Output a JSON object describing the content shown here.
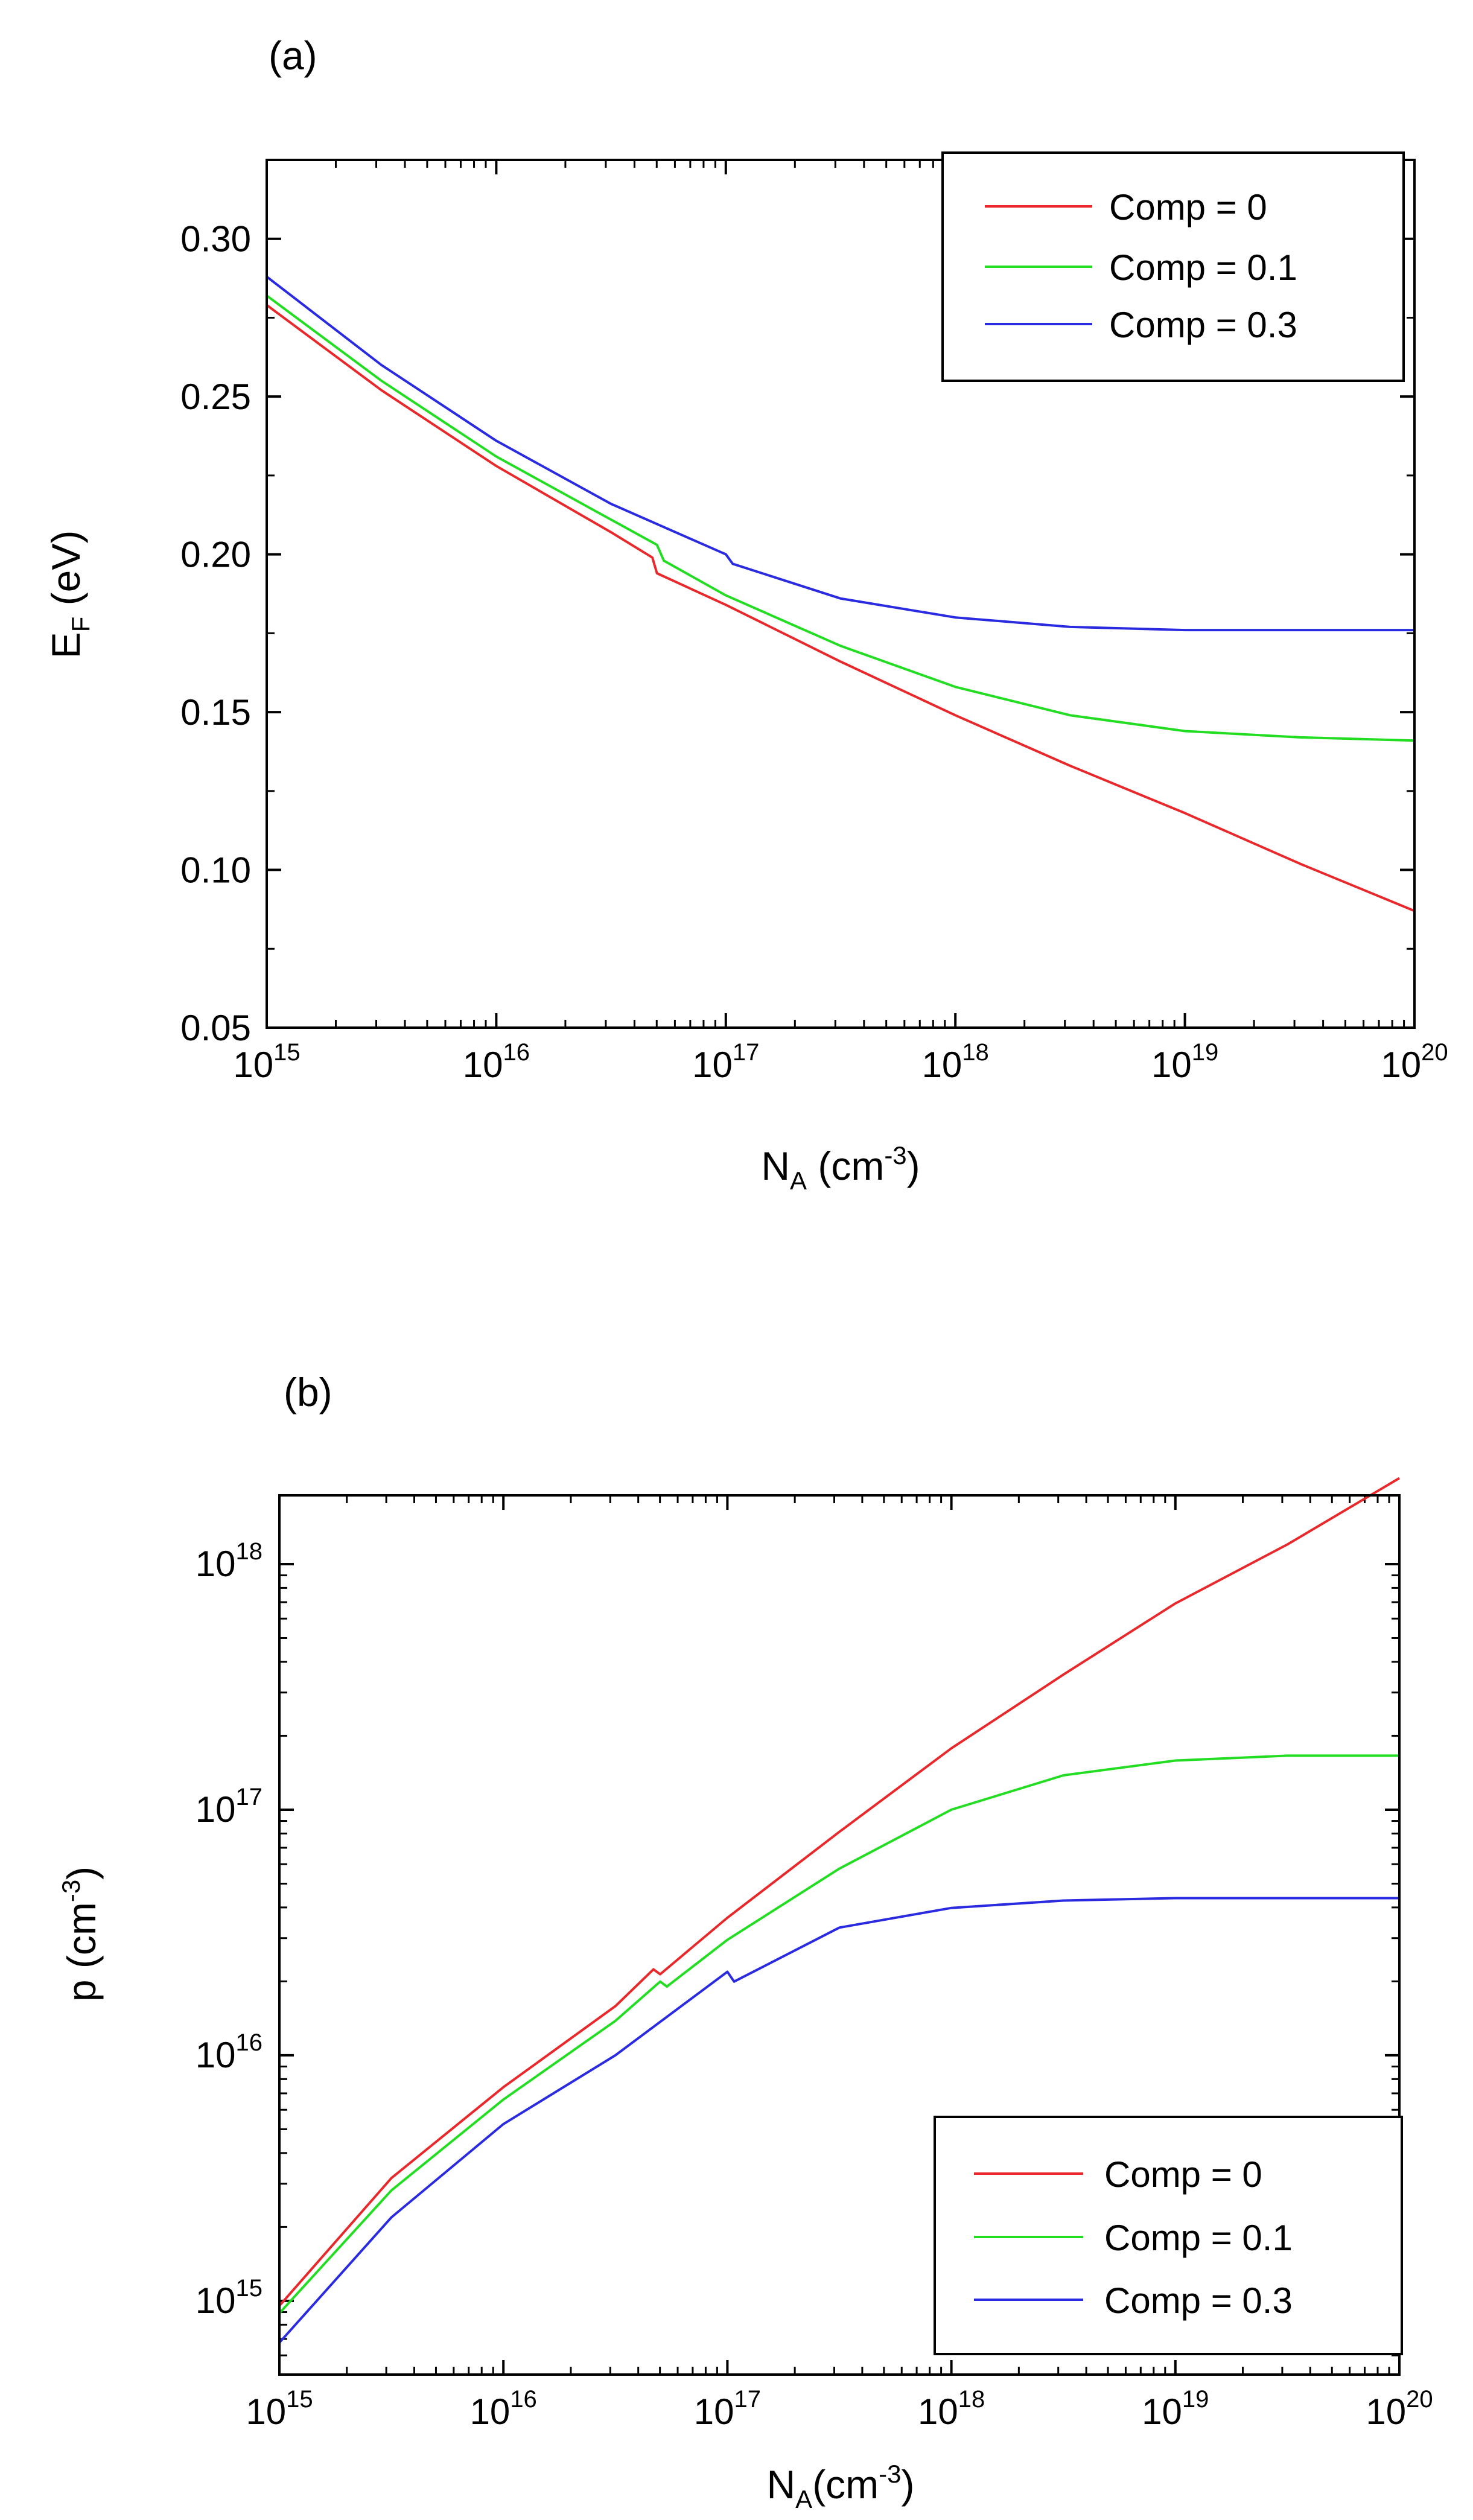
{
  "chart_data": [
    {
      "panel": "(a)",
      "type": "line",
      "title": "",
      "xlabel": {
        "main": "N",
        "sub": "A",
        "unit_pre": " (cm",
        "sup": "-3",
        "unit_post": ")"
      },
      "ylabel": {
        "main": "E",
        "sub": "F",
        "unit": " (eV)"
      },
      "xscale": "log",
      "xlim_exp": [
        15,
        20
      ],
      "ylim": [
        0.05,
        0.325
      ],
      "x_ticks": [
        {
          "base": "10",
          "exp": "15"
        },
        {
          "base": "10",
          "exp": "16"
        },
        {
          "base": "10",
          "exp": "17"
        },
        {
          "base": "10",
          "exp": "18"
        },
        {
          "base": "10",
          "exp": "19"
        },
        {
          "base": "10",
          "exp": "20"
        }
      ],
      "y_ticks": [
        "0.05",
        "0.10",
        "0.15",
        "0.20",
        "0.25",
        "0.30"
      ],
      "legend_position": "top-right",
      "series": [
        {
          "name": "Comp = 0",
          "color": "#e8282a",
          "points": [
            [
              15,
              0.279
            ],
            [
              15.5,
              0.252
            ],
            [
              16,
              0.228
            ],
            [
              16.5,
              0.207
            ],
            [
              16.68,
              0.199
            ],
            [
              16.7,
              0.194
            ],
            [
              17,
              0.184
            ],
            [
              17.5,
              0.166
            ],
            [
              18,
              0.149
            ],
            [
              18.5,
              0.133
            ],
            [
              19,
              0.118
            ],
            [
              19.5,
              0.102
            ],
            [
              20,
              0.087
            ]
          ]
        },
        {
          "name": "Comp = 0.1",
          "color": "#22dd22",
          "points": [
            [
              15,
              0.282
            ],
            [
              15.5,
              0.255
            ],
            [
              16,
              0.231
            ],
            [
              16.5,
              0.211
            ],
            [
              16.7,
              0.203
            ],
            [
              16.73,
              0.198
            ],
            [
              17,
              0.187
            ],
            [
              17.5,
              0.171
            ],
            [
              18,
              0.158
            ],
            [
              18.5,
              0.149
            ],
            [
              19,
              0.144
            ],
            [
              19.5,
              0.142
            ],
            [
              20,
              0.141
            ]
          ]
        },
        {
          "name": "Comp = 0.3",
          "color": "#2a2ae0",
          "points": [
            [
              15,
              0.288
            ],
            [
              15.5,
              0.26
            ],
            [
              16,
              0.236
            ],
            [
              16.5,
              0.216
            ],
            [
              17,
              0.2
            ],
            [
              17.03,
              0.197
            ],
            [
              17.5,
              0.186
            ],
            [
              18,
              0.18
            ],
            [
              18.5,
              0.177
            ],
            [
              19,
              0.176
            ],
            [
              20,
              0.176
            ]
          ]
        }
      ]
    },
    {
      "panel": "(b)",
      "type": "line",
      "title": "",
      "xlabel": {
        "main": "N",
        "sub": "A",
        "unit_pre": "(cm",
        "sup": "-3",
        "unit_post": ")"
      },
      "ylabel": {
        "main": "p (cm",
        "sup": "-3",
        "unit_post": ")"
      },
      "xscale": "log",
      "yscale": "log",
      "xlim_exp": [
        15,
        20
      ],
      "ylim_exp": [
        14.7,
        18.28
      ],
      "x_ticks": [
        {
          "base": "10",
          "exp": "15"
        },
        {
          "base": "10",
          "exp": "16"
        },
        {
          "base": "10",
          "exp": "17"
        },
        {
          "base": "10",
          "exp": "18"
        },
        {
          "base": "10",
          "exp": "19"
        },
        {
          "base": "10",
          "exp": "20"
        }
      ],
      "y_ticks": [
        {
          "base": "10",
          "exp": "15"
        },
        {
          "base": "10",
          "exp": "16"
        },
        {
          "base": "10",
          "exp": "17"
        },
        {
          "base": "10",
          "exp": "18"
        }
      ],
      "legend_position": "bottom-right",
      "series": [
        {
          "name": "Comp = 0",
          "color": "#e8282a",
          "points": [
            [
              15,
              14.98
            ],
            [
              15.5,
              15.5
            ],
            [
              16,
              15.87
            ],
            [
              16.5,
              16.2
            ],
            [
              16.67,
              16.35
            ],
            [
              16.7,
              16.33
            ],
            [
              17,
              16.56
            ],
            [
              17.5,
              16.91
            ],
            [
              18,
              17.25
            ],
            [
              18.5,
              17.55
            ],
            [
              19,
              17.84
            ],
            [
              19.5,
              18.08
            ],
            [
              20,
              18.35
            ]
          ]
        },
        {
          "name": "Comp = 0.1",
          "color": "#22dd22",
          "points": [
            [
              15,
              14.95
            ],
            [
              15.5,
              15.45
            ],
            [
              16,
              15.82
            ],
            [
              16.5,
              16.14
            ],
            [
              16.7,
              16.3
            ],
            [
              16.73,
              16.28
            ],
            [
              17,
              16.47
            ],
            [
              17.5,
              16.76
            ],
            [
              18,
              17.0
            ],
            [
              18.5,
              17.14
            ],
            [
              19,
              17.2
            ],
            [
              19.5,
              17.22
            ],
            [
              20,
              17.22
            ]
          ]
        },
        {
          "name": "Comp = 0.3",
          "color": "#2a2ae0",
          "points": [
            [
              15,
              14.83
            ],
            [
              15.5,
              15.34
            ],
            [
              16,
              15.72
            ],
            [
              16.5,
              16.0
            ],
            [
              17,
              16.34
            ],
            [
              17.03,
              16.3
            ],
            [
              17.5,
              16.52
            ],
            [
              18,
              16.6
            ],
            [
              18.5,
              16.63
            ],
            [
              19,
              16.64
            ],
            [
              20,
              16.64
            ]
          ]
        }
      ]
    }
  ]
}
